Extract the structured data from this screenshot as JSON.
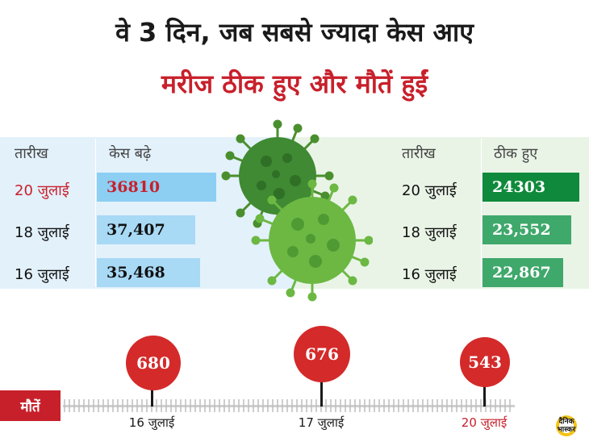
{
  "title_line1": "वे 3 दिन, जब सबसे ज्यादा केस आए",
  "title_line2": "मरीज ठीक हुए और मौतें हुईं",
  "cases": {
    "header_date": "तारीख",
    "header_value": "केस बढ़े",
    "rows": [
      {
        "date": "20 जुलाई",
        "value": "36810"
      },
      {
        "date": "18 जुलाई",
        "value": "37,407"
      },
      {
        "date": "16 जुलाई",
        "value": "35,468"
      }
    ]
  },
  "recovered": {
    "header_date": "तारीख",
    "header_value": "ठीक हुए",
    "rows": [
      {
        "date": "20 जुलाई",
        "value": "24303"
      },
      {
        "date": "18 जुलाई",
        "value": "23,552"
      },
      {
        "date": "16 जुलाई",
        "value": "22,867"
      }
    ]
  },
  "deaths": {
    "label": "मौतें",
    "points": [
      {
        "date": "16 जुलाई",
        "value": "680"
      },
      {
        "date": "17 जुलाई",
        "value": "676"
      },
      {
        "date": "20 जुलाई",
        "value": "543"
      }
    ]
  },
  "logo": {
    "line1": "दैनिक",
    "line2": "भास्कर"
  },
  "colors": {
    "accent_red": "#c8202b",
    "cases_blue": "#a8d9f5",
    "recovered_green": "#3fa86b",
    "virus_green": "#5aa83a"
  }
}
